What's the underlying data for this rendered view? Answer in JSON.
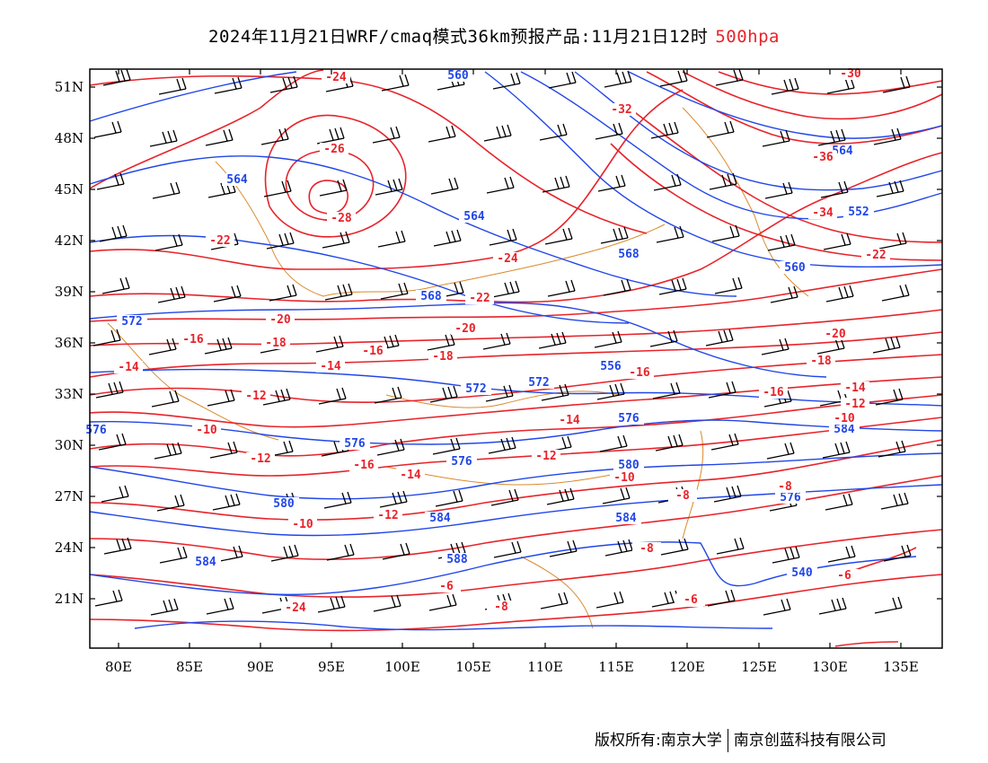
{
  "title": {
    "main": "2024年11月21日WRF/cmaq模式36km预报产品:11月21日12时",
    "level": "500hpa"
  },
  "axes": {
    "lat_labels": [
      "51N",
      "48N",
      "45N",
      "42N",
      "39N",
      "36N",
      "33N",
      "30N",
      "27N",
      "24N",
      "21N"
    ],
    "lon_labels": [
      "80E",
      "85E",
      "90E",
      "95E",
      "100E",
      "105E",
      "110E",
      "115E",
      "120E",
      "125E",
      "130E",
      "135E"
    ]
  },
  "contour_labels": {
    "height": [
      "560",
      "564",
      "564",
      "568",
      "568",
      "572",
      "572",
      "576",
      "576",
      "576",
      "580",
      "584",
      "584",
      "584",
      "588",
      "564",
      "560",
      "552",
      "540",
      "576",
      "556",
      "576",
      "580",
      "584",
      "572"
    ],
    "temperature": [
      "-24",
      "-26",
      "-28",
      "-24",
      "-22",
      "-22",
      "-20",
      "-18",
      "-16",
      "-14",
      "-20",
      "-18",
      "-16",
      "-14",
      "-12",
      "-10",
      "-12",
      "-16",
      "-14",
      "-12",
      "-10",
      "-8",
      "-6",
      "-24",
      "-32",
      "-34",
      "-36",
      "-30",
      "-22",
      "-20",
      "-18",
      "-16",
      "-14",
      "-12",
      "-10",
      "-8",
      "-6",
      "-18",
      "-16",
      "-14",
      "-12",
      "-10",
      "-8",
      "-8",
      "-6"
    ]
  },
  "colors": {
    "height_contour": "#2146e8",
    "temperature_contour": "#e8232a",
    "boundary": "#d98a2b",
    "wind_barb": "#000000",
    "level_text": "#e8232a"
  },
  "copyright": {
    "left": "版权所有:南京大学",
    "right": "南京创蓝科技有限公司"
  }
}
